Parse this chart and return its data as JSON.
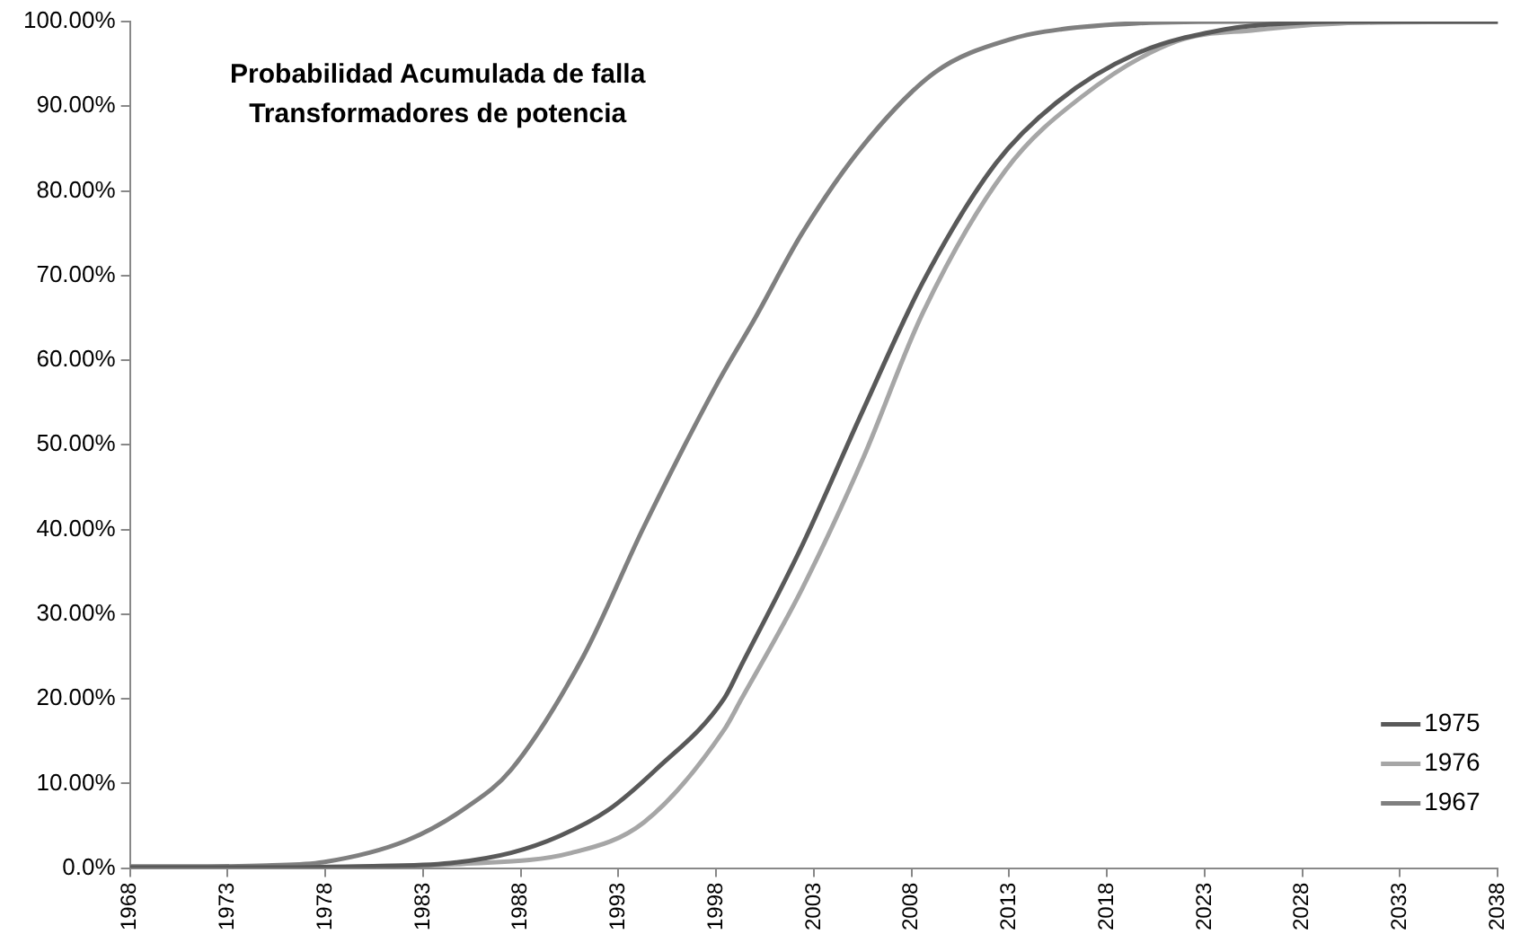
{
  "chart_data": {
    "type": "line",
    "title": "Probabilidad Acumulada de falla\nTransformadores de potencia",
    "xlim": [
      1968,
      2038
    ],
    "xticks": [
      1968,
      1973,
      1978,
      1983,
      1988,
      1993,
      1998,
      2003,
      2008,
      2013,
      2018,
      2023,
      2028,
      2033,
      2038
    ],
    "ylim": [
      0,
      100
    ],
    "yticks": [
      {
        "value": 0,
        "label": "0.0%"
      },
      {
        "value": 10,
        "label": "10.00%"
      },
      {
        "value": 20,
        "label": "20.00%"
      },
      {
        "value": 30,
        "label": "30.00%"
      },
      {
        "value": 40,
        "label": "40.00%"
      },
      {
        "value": 50,
        "label": "50.00%"
      },
      {
        "value": 60,
        "label": "60.00%"
      },
      {
        "value": 70,
        "label": "70.00%"
      },
      {
        "value": 80,
        "label": "80.00%"
      },
      {
        "value": 90,
        "label": "90.00%"
      },
      {
        "value": 100,
        "label": "100.00%"
      }
    ],
    "grid": false,
    "legend": "bottom right",
    "marker": "none",
    "line_style": "solid",
    "series": [
      {
        "name": "1975",
        "color": "#595959",
        "x": [
          1968,
          1975,
          1980,
          1984.4,
          1987.5,
          1990,
          1992.5,
          1994.9,
          1998.4,
          1999.3,
          2002.4,
          2005.5,
          2008.6,
          2012.3,
          2015.4,
          2019.5,
          2024.1,
          2027.2,
          2030,
          2038
        ],
        "values": [
          0.1,
          0.1,
          0.2,
          0.6,
          1.8,
          3.8,
          6.9,
          11.6,
          20,
          24,
          38.1,
          54,
          69.3,
          83.2,
          90.4,
          96.2,
          99.1,
          99.8,
          100,
          100
        ]
      },
      {
        "name": "1976",
        "color": "#a6a6a6",
        "x": [
          1968,
          1975,
          1980,
          1985,
          1990.6,
          1994.3,
          1998.4,
          1999.3,
          2002.4,
          2005.5,
          2008.6,
          2012.8,
          2016.7,
          2021.6,
          2025.6,
          2030,
          2038
        ],
        "values": [
          0.1,
          0.1,
          0.2,
          0.5,
          1.8,
          5.4,
          16.3,
          20,
          33,
          48.3,
          65.7,
          82.4,
          91.1,
          97.7,
          99,
          99.8,
          100
        ]
      },
      {
        "name": "1967",
        "color": "#7f7f7f",
        "x": [
          1968,
          1972,
          1975,
          1977.9,
          1982.2,
          1985.3,
          1987.5,
          1991.2,
          1994.3,
          1998,
          2000,
          2002.4,
          2005.5,
          2009.2,
          2013.2,
          2015.7,
          2019.5,
          2025,
          2038
        ],
        "values": [
          0.2,
          0.2,
          0.3,
          0.7,
          3.3,
          7.3,
          11.6,
          25,
          40.3,
          57,
          65,
          75,
          85.3,
          94,
          98,
          99.1,
          99.8,
          100,
          100
        ]
      }
    ]
  }
}
